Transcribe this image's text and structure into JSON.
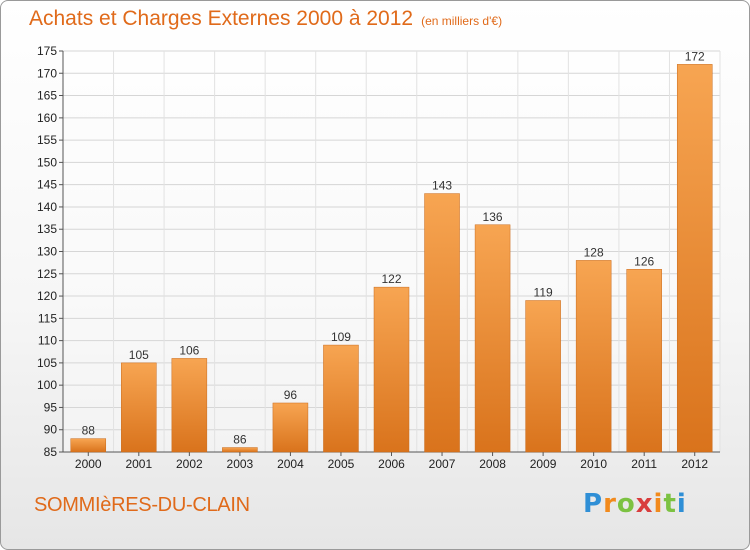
{
  "header": {
    "title": "Achats et Charges Externes 2000 à 2012",
    "unit": "(en milliers d'€)"
  },
  "footer": {
    "town": "SOMMIèRES-DU-CLAIN",
    "logo": [
      "P",
      "r",
      "o",
      "x",
      "i",
      "t",
      "i"
    ]
  },
  "colors": {
    "bar_light": "#f7a552",
    "bar_dark": "#d9731c",
    "title": "#e06a1a"
  },
  "chart_data": {
    "type": "bar",
    "title": "Achats et Charges Externes 2000 à 2012",
    "subtitle": "(en milliers d'€)",
    "xlabel": "",
    "ylabel": "",
    "categories": [
      "2000",
      "2001",
      "2002",
      "2003",
      "2004",
      "2005",
      "2006",
      "2007",
      "2008",
      "2009",
      "2010",
      "2011",
      "2012"
    ],
    "values": [
      88,
      105,
      106,
      86,
      96,
      109,
      122,
      143,
      136,
      119,
      128,
      126,
      172
    ],
    "ylim": [
      85,
      175
    ],
    "yticks": [
      85,
      90,
      95,
      100,
      105,
      110,
      115,
      120,
      125,
      130,
      135,
      140,
      145,
      150,
      155,
      160,
      165,
      170,
      175
    ],
    "grid": true,
    "legend": "none"
  }
}
